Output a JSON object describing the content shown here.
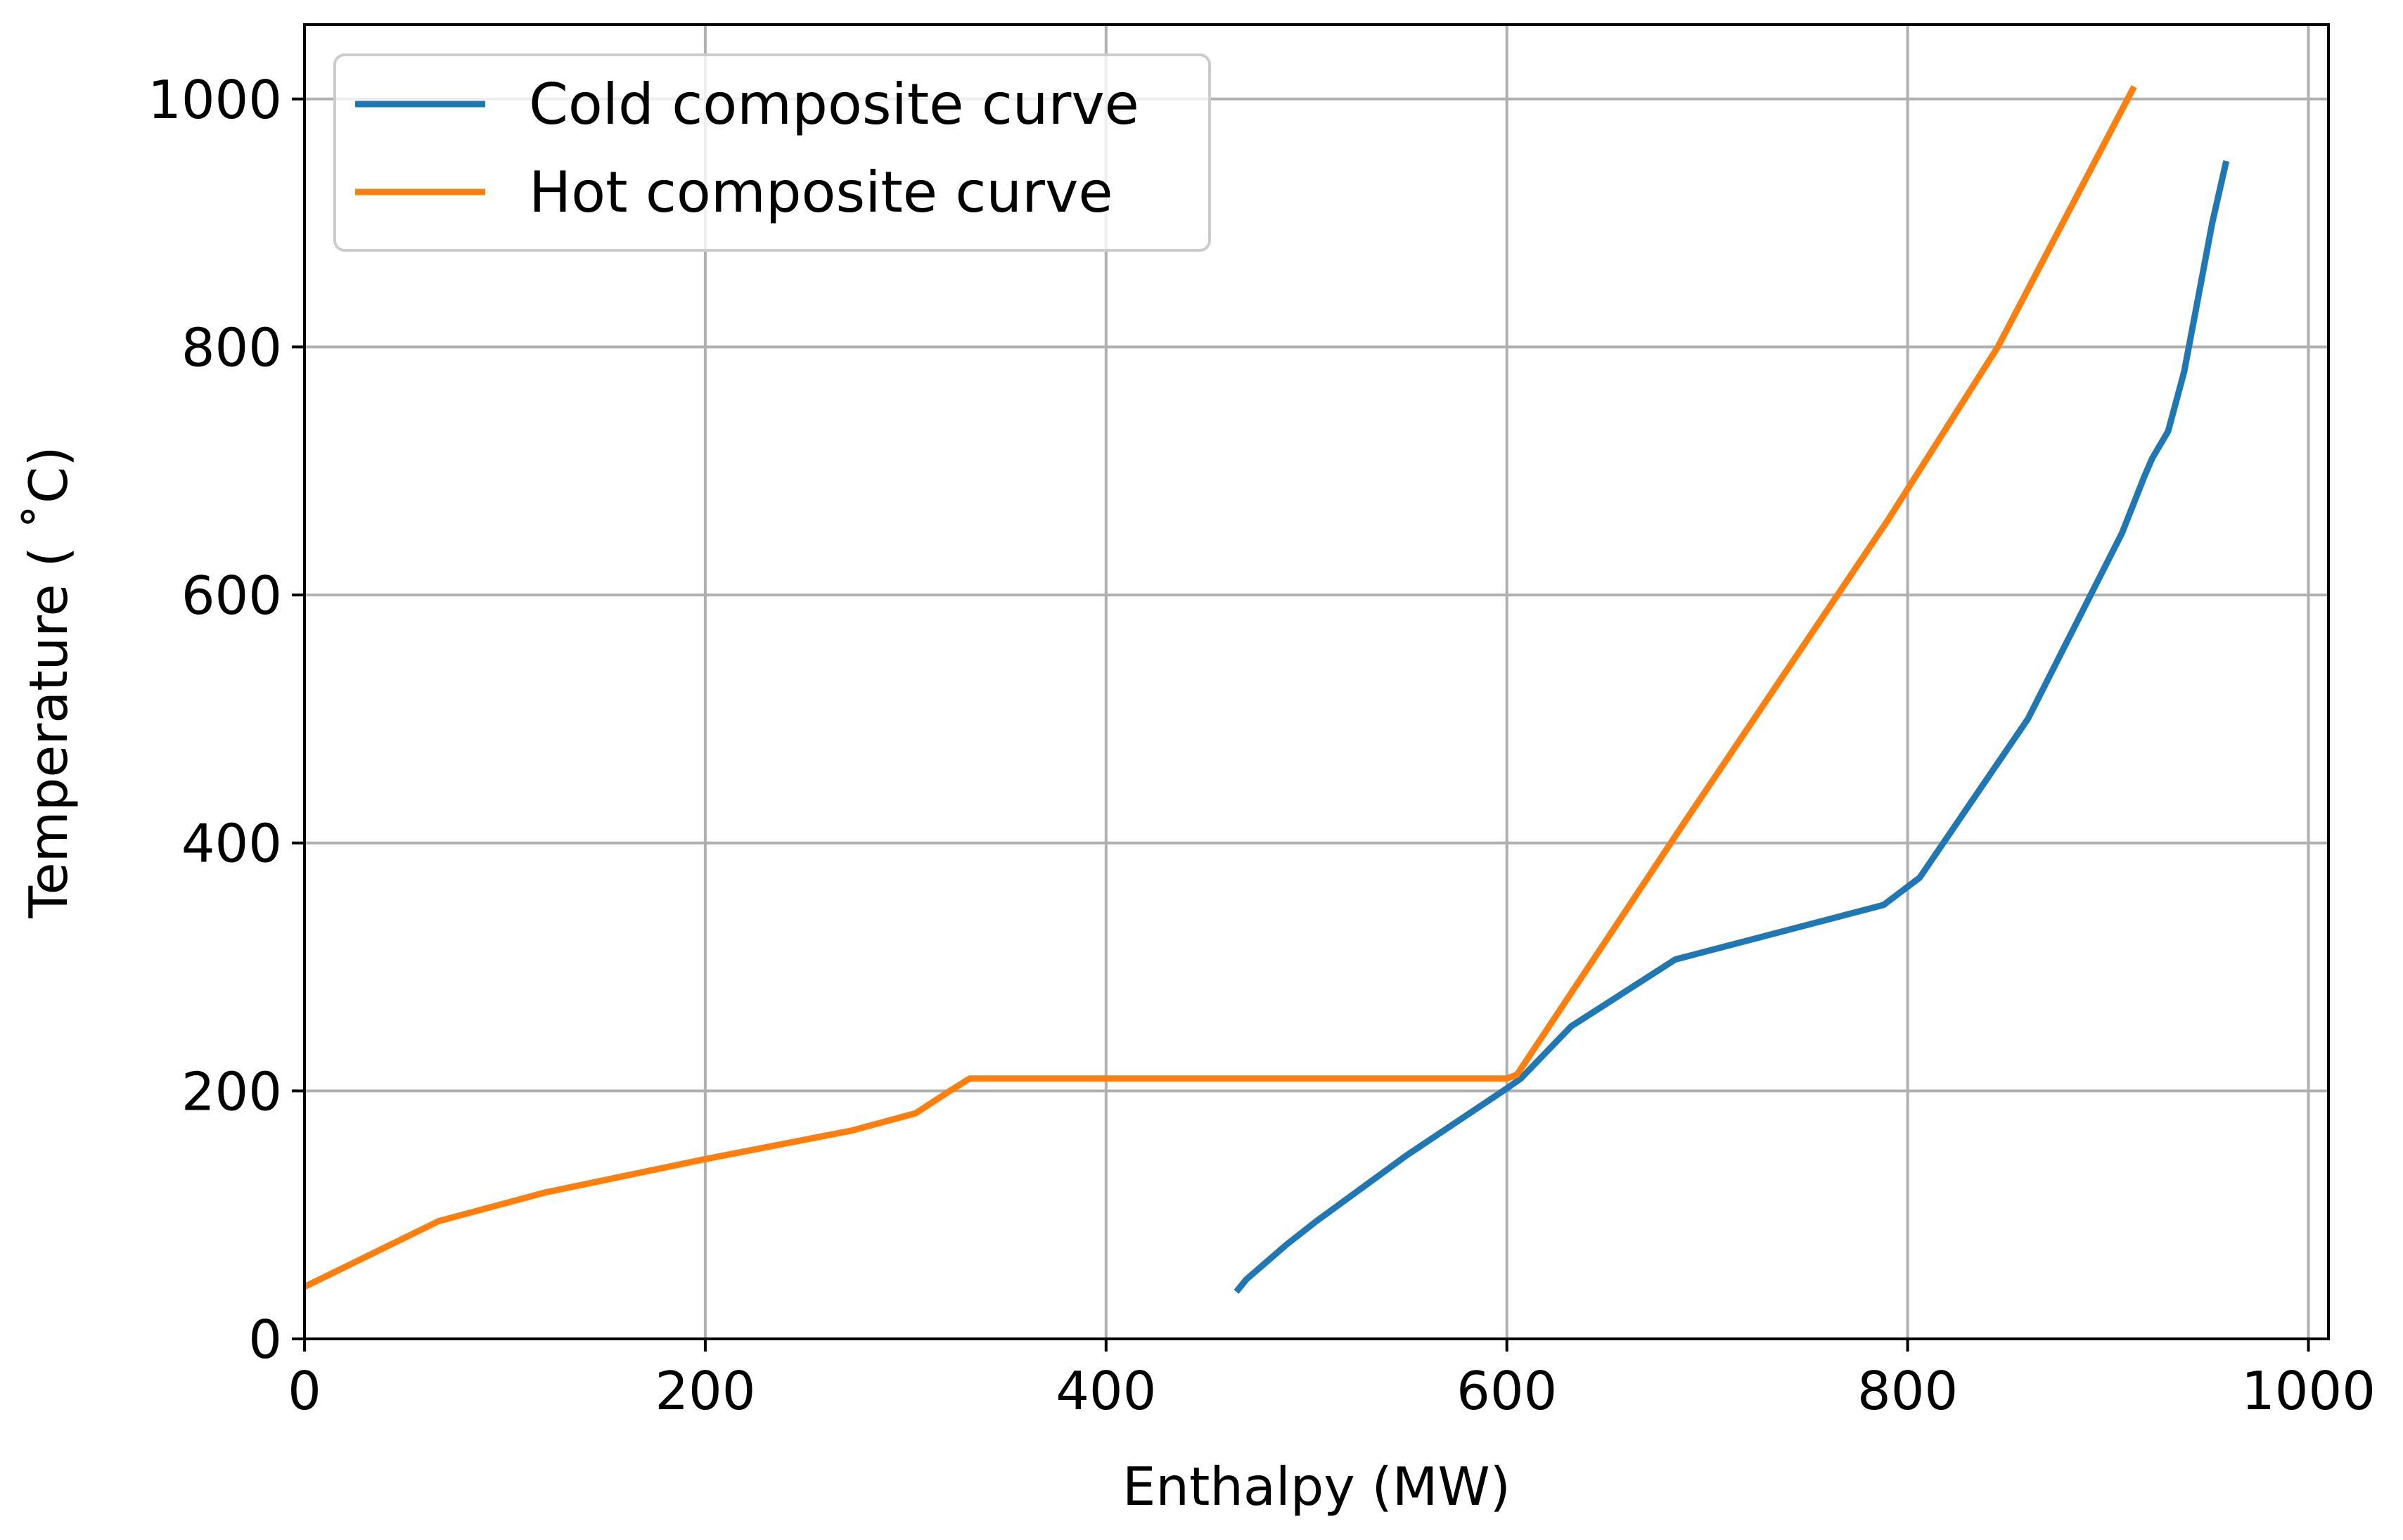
{
  "chart_data": {
    "type": "line",
    "title": "",
    "xlabel": "Enthalpy (MW)",
    "ylabel": "Temperature ($^\\circ$C)",
    "ylabel_display": "Temperature ( ˚C)",
    "xlim": [
      0,
      1010
    ],
    "ylim": [
      0,
      1060
    ],
    "xticks": [
      0,
      200,
      400,
      600,
      800,
      1000
    ],
    "yticks": [
      0,
      200,
      400,
      600,
      800,
      1000
    ],
    "grid": true,
    "legend_position": "upper-left",
    "series": [
      {
        "name": "Cold composite curve",
        "color": "#1f77b4",
        "x": [
          465,
          470,
          480,
          490,
          505,
          550,
          600,
          607,
          632,
          684,
          788,
          806,
          860,
          907,
          918,
          922,
          930,
          938,
          945,
          952,
          959
        ],
        "y": [
          38,
          48,
          62,
          76,
          95,
          148,
          202,
          210,
          252,
          306,
          350,
          372,
          500,
          650,
          695,
          710,
          732,
          780,
          840,
          900,
          950
        ]
      },
      {
        "name": "Hot composite curve",
        "color": "#ff7f0e",
        "x": [
          0,
          67,
          120,
          200,
          273,
          305,
          322,
          332,
          600,
          605,
          690,
          790,
          845,
          913
        ],
        "y": [
          42,
          95,
          118,
          145,
          168,
          182,
          200,
          210,
          210,
          213,
          420,
          660,
          800,
          1010
        ]
      }
    ]
  }
}
